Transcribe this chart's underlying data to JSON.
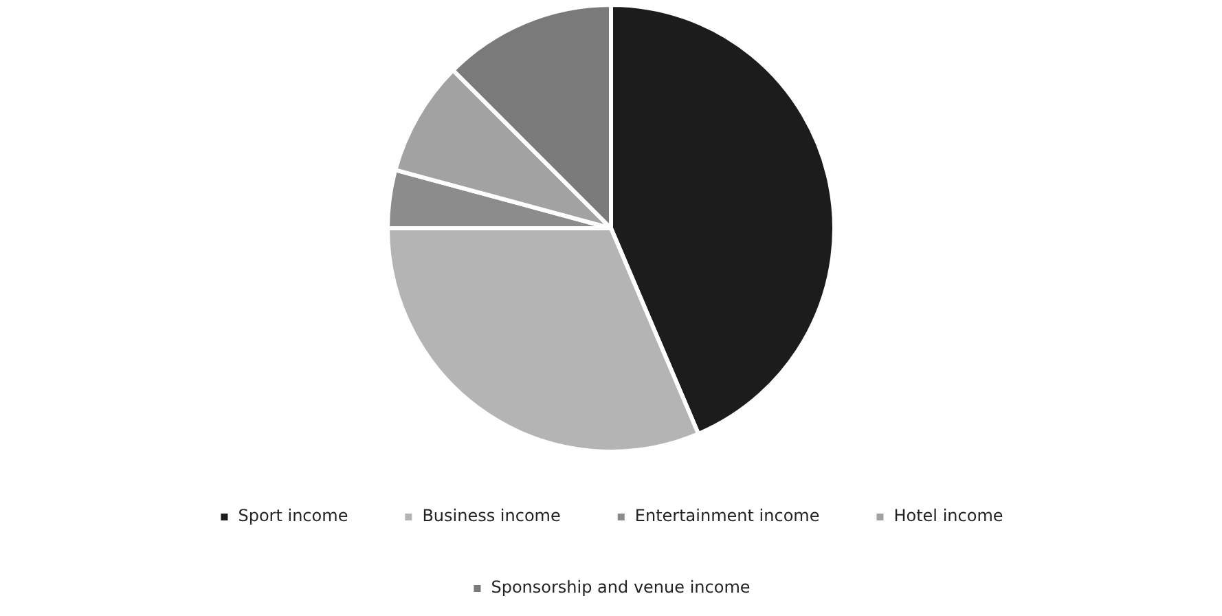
{
  "chart_data": {
    "type": "pie",
    "categories": [
      "Sport income",
      "Business income",
      "Entertainment income",
      "Hotel income",
      "Sponsorship and venue income"
    ],
    "values": [
      43.6,
      31.4,
      4.2,
      8.3,
      12.5
    ],
    "colors": [
      "#1c1c1c",
      "#b4b4b4",
      "#8c8c8c",
      "#a2a2a2",
      "#7a7a7a"
    ],
    "legend": "bottom"
  }
}
